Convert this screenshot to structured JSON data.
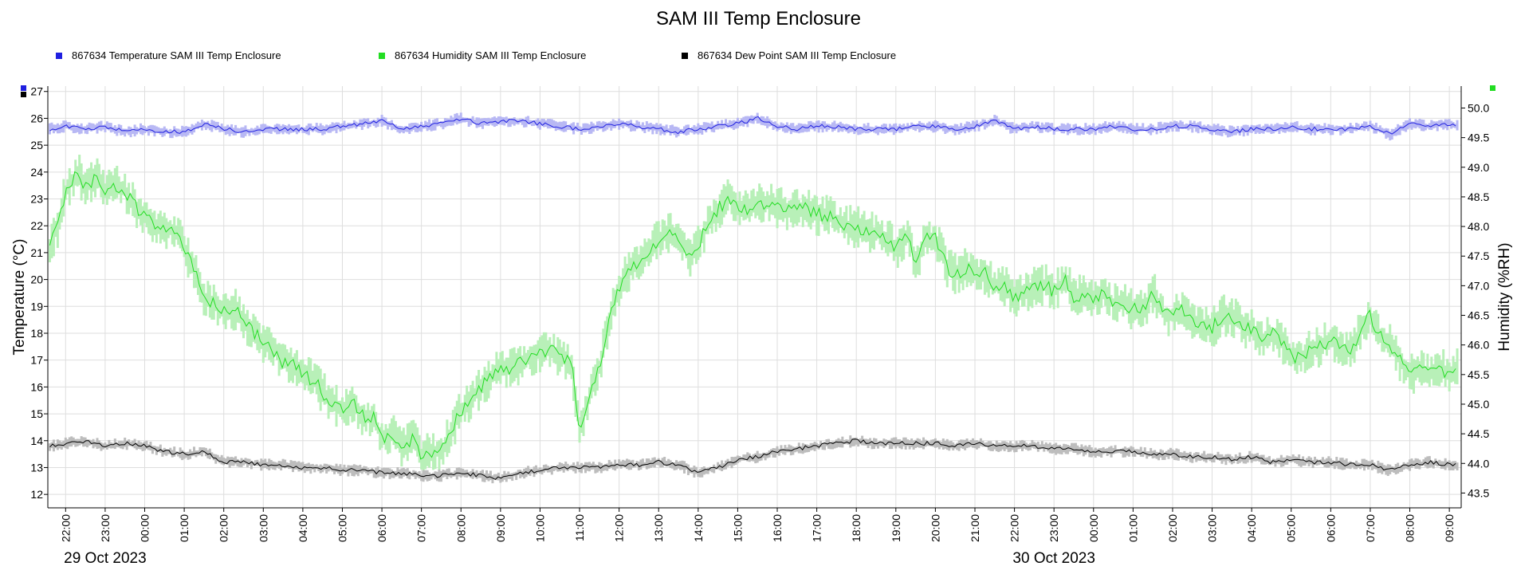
{
  "chart_data": {
    "type": "line",
    "title": "SAM III Temp Enclosure",
    "xlabel": "",
    "ylabel": "Temperature (°C)",
    "y2label": "Humidity (%RH)",
    "ylim": [
      11.5,
      27.2
    ],
    "y2lim": [
      43.25,
      50.37
    ],
    "yticks": [
      "12",
      "13",
      "14",
      "15",
      "16",
      "17",
      "18",
      "19",
      "20",
      "21",
      "22",
      "23",
      "24",
      "25",
      "26",
      "27"
    ],
    "y2ticks": [
      "43.5",
      "44.0",
      "44.5",
      "45.0",
      "45.5",
      "46.0",
      "46.5",
      "47.0",
      "47.5",
      "48.0",
      "48.5",
      "49.0",
      "49.5",
      "50.0"
    ],
    "xlim": [
      21.55,
      57.3
    ],
    "xticks": [
      "22:00",
      "23:00",
      "00:00",
      "01:00",
      "02:00",
      "03:00",
      "04:00",
      "05:00",
      "06:00",
      "07:00",
      "08:00",
      "09:00",
      "10:00",
      "11:00",
      "12:00",
      "13:00",
      "14:00",
      "15:00",
      "16:00",
      "17:00",
      "18:00",
      "19:00",
      "20:00",
      "21:00",
      "22:00",
      "23:00",
      "00:00",
      "01:00",
      "02:00",
      "03:00",
      "04:00",
      "05:00",
      "06:00",
      "07:00",
      "08:00",
      "09:00"
    ],
    "date_labels": [
      "29 Oct 2023",
      "30 Oct 2023"
    ],
    "grid": true,
    "legend_position": "top",
    "x_unit_note": "hours from 00:00 on 29 Oct 2023",
    "series": [
      {
        "name": "867634  Temperature SAM III Temp Enclosure",
        "axis": "left",
        "color": "#1f1fe0",
        "band_color": "#b8b8f4",
        "x": [
          21.6,
          22.0,
          22.5,
          23.0,
          23.5,
          24.0,
          24.5,
          25.0,
          25.5,
          26.0,
          26.5,
          27.0,
          27.5,
          28.0,
          28.5,
          29.0,
          29.5,
          30.0,
          30.5,
          31.0,
          31.5,
          32.0,
          32.5,
          33.0,
          33.5,
          34.0,
          34.5,
          35.0,
          35.5,
          36.0,
          36.5,
          37.0,
          37.5,
          38.0,
          38.5,
          39.0,
          39.5,
          40.0,
          40.5,
          41.0,
          41.5,
          42.0,
          42.5,
          43.0,
          43.5,
          44.0,
          44.5,
          45.0,
          45.5,
          46.0,
          46.5,
          47.0,
          47.5,
          48.0,
          48.5,
          49.0,
          49.5,
          50.0,
          50.5,
          51.0,
          51.5,
          52.0,
          52.5,
          53.0,
          53.5,
          54.0,
          54.5,
          55.0,
          55.5,
          56.0,
          56.5,
          57.0,
          57.2
        ],
        "y": [
          25.6,
          25.7,
          25.6,
          25.7,
          25.5,
          25.6,
          25.5,
          25.5,
          25.8,
          25.6,
          25.5,
          25.6,
          25.6,
          25.6,
          25.6,
          25.7,
          25.8,
          25.9,
          25.6,
          25.7,
          25.8,
          26.0,
          25.8,
          25.9,
          25.9,
          25.8,
          25.7,
          25.6,
          25.7,
          25.8,
          25.7,
          25.6,
          25.5,
          25.6,
          25.7,
          25.8,
          26.0,
          25.7,
          25.6,
          25.7,
          25.7,
          25.6,
          25.6,
          25.6,
          25.7,
          25.7,
          25.6,
          25.7,
          25.9,
          25.6,
          25.7,
          25.6,
          25.6,
          25.6,
          25.7,
          25.6,
          25.6,
          25.7,
          25.7,
          25.6,
          25.5,
          25.6,
          25.6,
          25.7,
          25.6,
          25.6,
          25.6,
          25.7,
          25.4,
          25.8,
          25.7,
          25.8,
          25.7
        ]
      },
      {
        "name": "867634  Humidity SAM III Temp Enclosure",
        "axis": "right",
        "color": "#22dd22",
        "band_color": "#b8f0b8",
        "x": [
          21.6,
          21.8,
          22.0,
          22.3,
          22.5,
          22.8,
          23.0,
          23.3,
          23.5,
          23.8,
          24.0,
          24.3,
          24.5,
          24.8,
          25.0,
          25.3,
          25.5,
          25.8,
          26.0,
          26.3,
          26.5,
          26.8,
          27.0,
          27.3,
          27.5,
          27.8,
          28.0,
          28.3,
          28.5,
          28.8,
          29.0,
          29.3,
          29.5,
          29.8,
          30.0,
          30.3,
          30.5,
          30.8,
          31.0,
          31.3,
          31.5,
          31.8,
          32.0,
          32.3,
          32.5,
          32.8,
          33.0,
          33.3,
          33.5,
          33.8,
          34.0,
          34.3,
          34.5,
          34.8,
          35.0,
          35.3,
          35.5,
          35.8,
          36.0,
          36.3,
          36.5,
          36.8,
          37.0,
          37.3,
          37.5,
          37.8,
          38.0,
          38.3,
          38.5,
          38.8,
          39.0,
          39.3,
          39.5,
          39.8,
          40.0,
          40.3,
          40.5,
          40.8,
          41.0,
          41.3,
          41.5,
          41.8,
          42.0,
          42.3,
          42.5,
          42.8,
          43.0,
          43.3,
          43.5,
          43.8,
          44.0,
          44.3,
          44.5,
          44.8,
          45.0,
          45.3,
          45.5,
          45.8,
          46.0,
          46.3,
          46.5,
          46.8,
          47.0,
          47.3,
          47.5,
          47.8,
          48.0,
          48.3,
          48.5,
          48.8,
          49.0,
          49.3,
          49.5,
          49.8,
          50.0,
          50.3,
          50.5,
          50.8,
          51.0,
          51.3,
          51.5,
          51.8,
          52.0,
          52.3,
          52.5,
          52.8,
          53.0,
          53.3,
          53.5,
          53.8,
          54.0,
          54.3,
          54.5,
          54.8,
          55.0,
          55.3,
          55.5,
          55.8,
          56.0,
          56.3,
          56.5,
          56.8,
          57.0,
          57.2
        ],
        "y": [
          47.7,
          48.0,
          48.6,
          48.9,
          48.7,
          48.8,
          48.6,
          48.7,
          48.6,
          48.3,
          48.2,
          48.0,
          48.0,
          47.9,
          47.6,
          47.2,
          46.8,
          46.7,
          46.6,
          46.6,
          46.4,
          46.2,
          46.0,
          45.9,
          45.7,
          45.7,
          45.5,
          45.4,
          45.2,
          45.0,
          44.9,
          45.0,
          44.8,
          44.8,
          44.4,
          44.5,
          44.3,
          44.4,
          44.1,
          44.2,
          44.2,
          44.6,
          44.9,
          45.1,
          45.3,
          45.5,
          45.6,
          45.6,
          45.7,
          45.8,
          45.9,
          45.9,
          45.8,
          45.7,
          44.5,
          45.3,
          45.6,
          46.6,
          47.0,
          47.3,
          47.4,
          47.6,
          47.8,
          47.9,
          47.8,
          47.5,
          47.7,
          48.1,
          48.3,
          48.5,
          48.3,
          48.3,
          48.4,
          48.4,
          48.3,
          48.3,
          48.3,
          48.3,
          48.2,
          48.2,
          48.1,
          48.0,
          48.0,
          47.9,
          47.9,
          47.8,
          47.6,
          47.9,
          47.4,
          47.8,
          47.8,
          47.3,
          47.2,
          47.3,
          47.2,
          47.2,
          47.0,
          47.0,
          46.8,
          46.9,
          47.0,
          47.0,
          46.9,
          47.1,
          46.8,
          46.9,
          46.8,
          46.9,
          46.7,
          46.7,
          46.6,
          46.6,
          46.9,
          46.5,
          46.5,
          46.6,
          46.4,
          46.3,
          46.3,
          46.5,
          46.5,
          46.3,
          46.3,
          46.1,
          46.2,
          46.0,
          45.8,
          45.8,
          45.9,
          46.0,
          46.1,
          45.9,
          45.9,
          46.3,
          46.5,
          46.1,
          46.0,
          45.7,
          45.5,
          45.6,
          45.5,
          45.6,
          45.5,
          45.6
        ]
      },
      {
        "name": "867634  Dew Point SAM III Temp Enclosure",
        "axis": "left",
        "color": "#000000",
        "band_color": "#bdbdbd",
        "x": [
          21.6,
          22.0,
          22.5,
          23.0,
          23.5,
          24.0,
          24.5,
          25.0,
          25.5,
          26.0,
          26.5,
          27.0,
          27.5,
          28.0,
          28.5,
          29.0,
          29.5,
          30.0,
          30.5,
          31.0,
          31.5,
          32.0,
          32.5,
          33.0,
          33.5,
          34.0,
          34.5,
          35.0,
          35.5,
          36.0,
          36.5,
          37.0,
          37.5,
          38.0,
          38.5,
          39.0,
          39.5,
          40.0,
          40.5,
          41.0,
          41.5,
          42.0,
          42.5,
          43.0,
          43.5,
          44.0,
          44.5,
          45.0,
          45.5,
          46.0,
          46.5,
          47.0,
          47.5,
          48.0,
          48.5,
          49.0,
          49.5,
          50.0,
          50.5,
          51.0,
          51.5,
          52.0,
          52.5,
          53.0,
          53.5,
          54.0,
          54.5,
          55.0,
          55.5,
          56.0,
          56.5,
          57.0,
          57.2
        ],
        "y": [
          13.8,
          13.9,
          14.0,
          13.8,
          13.9,
          13.8,
          13.6,
          13.5,
          13.6,
          13.2,
          13.2,
          13.1,
          13.1,
          13.0,
          13.0,
          12.9,
          12.9,
          12.8,
          12.8,
          12.7,
          12.7,
          12.8,
          12.7,
          12.6,
          12.8,
          12.9,
          13.0,
          13.0,
          13.0,
          13.1,
          13.1,
          13.2,
          13.1,
          12.8,
          13.0,
          13.3,
          13.4,
          13.6,
          13.7,
          13.8,
          13.9,
          14.0,
          13.9,
          13.9,
          13.9,
          13.9,
          13.8,
          13.9,
          13.8,
          13.8,
          13.8,
          13.7,
          13.7,
          13.6,
          13.6,
          13.6,
          13.5,
          13.5,
          13.4,
          13.4,
          13.3,
          13.4,
          13.2,
          13.3,
          13.2,
          13.2,
          13.1,
          13.1,
          12.9,
          13.1,
          13.2,
          13.1,
          13.1
        ]
      }
    ]
  }
}
